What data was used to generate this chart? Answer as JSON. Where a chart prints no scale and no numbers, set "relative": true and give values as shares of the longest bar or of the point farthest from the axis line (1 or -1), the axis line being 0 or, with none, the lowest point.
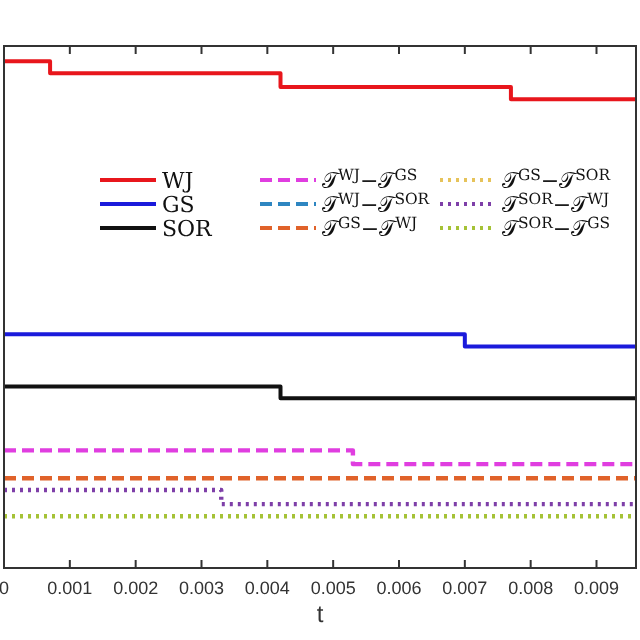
{
  "chart_data": {
    "type": "step",
    "relative": true,
    "xlabel": "t",
    "x": [
      0,
      0.0007,
      0.0033,
      0.0042,
      0.0053,
      0.007,
      0.0077,
      0.0096
    ],
    "xlim": [
      0,
      0.0096
    ],
    "xticks": [
      0,
      0.001,
      0.002,
      0.003,
      0.004,
      0.005,
      0.006,
      0.007,
      0.008,
      0.009
    ],
    "grid": false,
    "legend": "top",
    "series": [
      {
        "name": "WJ",
        "color": "#e8161c",
        "line_style": "solid",
        "values": [
          1,
          0.976,
          0.976,
          0.949,
          0.949,
          0.949,
          0.925,
          0.925
        ]
      },
      {
        "name": "GS",
        "color": "#1a1adb",
        "line_style": "solid",
        "values": [
          0.461,
          0.461,
          0.461,
          0.461,
          0.461,
          0.437,
          0.437,
          0.437
        ]
      },
      {
        "name": "SOR",
        "color": "#111111",
        "line_style": "solid",
        "values": [
          0.358,
          0.358,
          0.358,
          0.335,
          0.335,
          0.335,
          0.335,
          0.335
        ]
      },
      {
        "name": "𝒯$^{WJ}$−𝒯$^{GS}$",
        "color": "#e03ee0",
        "line_style": "dashed",
        "values": [
          0.232,
          0.232,
          0.232,
          0.232,
          0.205,
          0.205,
          0.205,
          0.205
        ]
      },
      {
        "name": "𝒯$^{WJ}$−𝒯$^{SOR}$",
        "color": "#2e86c1",
        "line_style": "dashed",
        "values": [
          null,
          null,
          null,
          null,
          null,
          null,
          null,
          null
        ]
      },
      {
        "name": "𝒯$^{GS}$−𝒯$^{WJ}$",
        "color": "#e0622a",
        "line_style": "dashed",
        "values": [
          0.177,
          0.177,
          0.177,
          0.177,
          0.177,
          0.177,
          0.177,
          0.177
        ]
      },
      {
        "name": "𝒯$^{GS}$−𝒯$^{SOR}$",
        "color": "#e6c35a",
        "line_style": "dotted",
        "values": [
          null,
          null,
          null,
          null,
          null,
          null,
          null,
          null
        ]
      },
      {
        "name": "𝒯$^{SOR}$−𝒯$^{WJ}$",
        "color": "#7e3fa8",
        "line_style": "dotted",
        "values": [
          0.154,
          0.154,
          0.126,
          0.126,
          0.126,
          0.126,
          0.126,
          0.126
        ]
      },
      {
        "name": "𝒯$^{SOR}$−𝒯$^{GS}$",
        "color": "#a5c236",
        "line_style": "dotted",
        "values": [
          0.102,
          0.102,
          0.102,
          0.102,
          0.102,
          0.102,
          0.102,
          0.102
        ]
      }
    ]
  }
}
